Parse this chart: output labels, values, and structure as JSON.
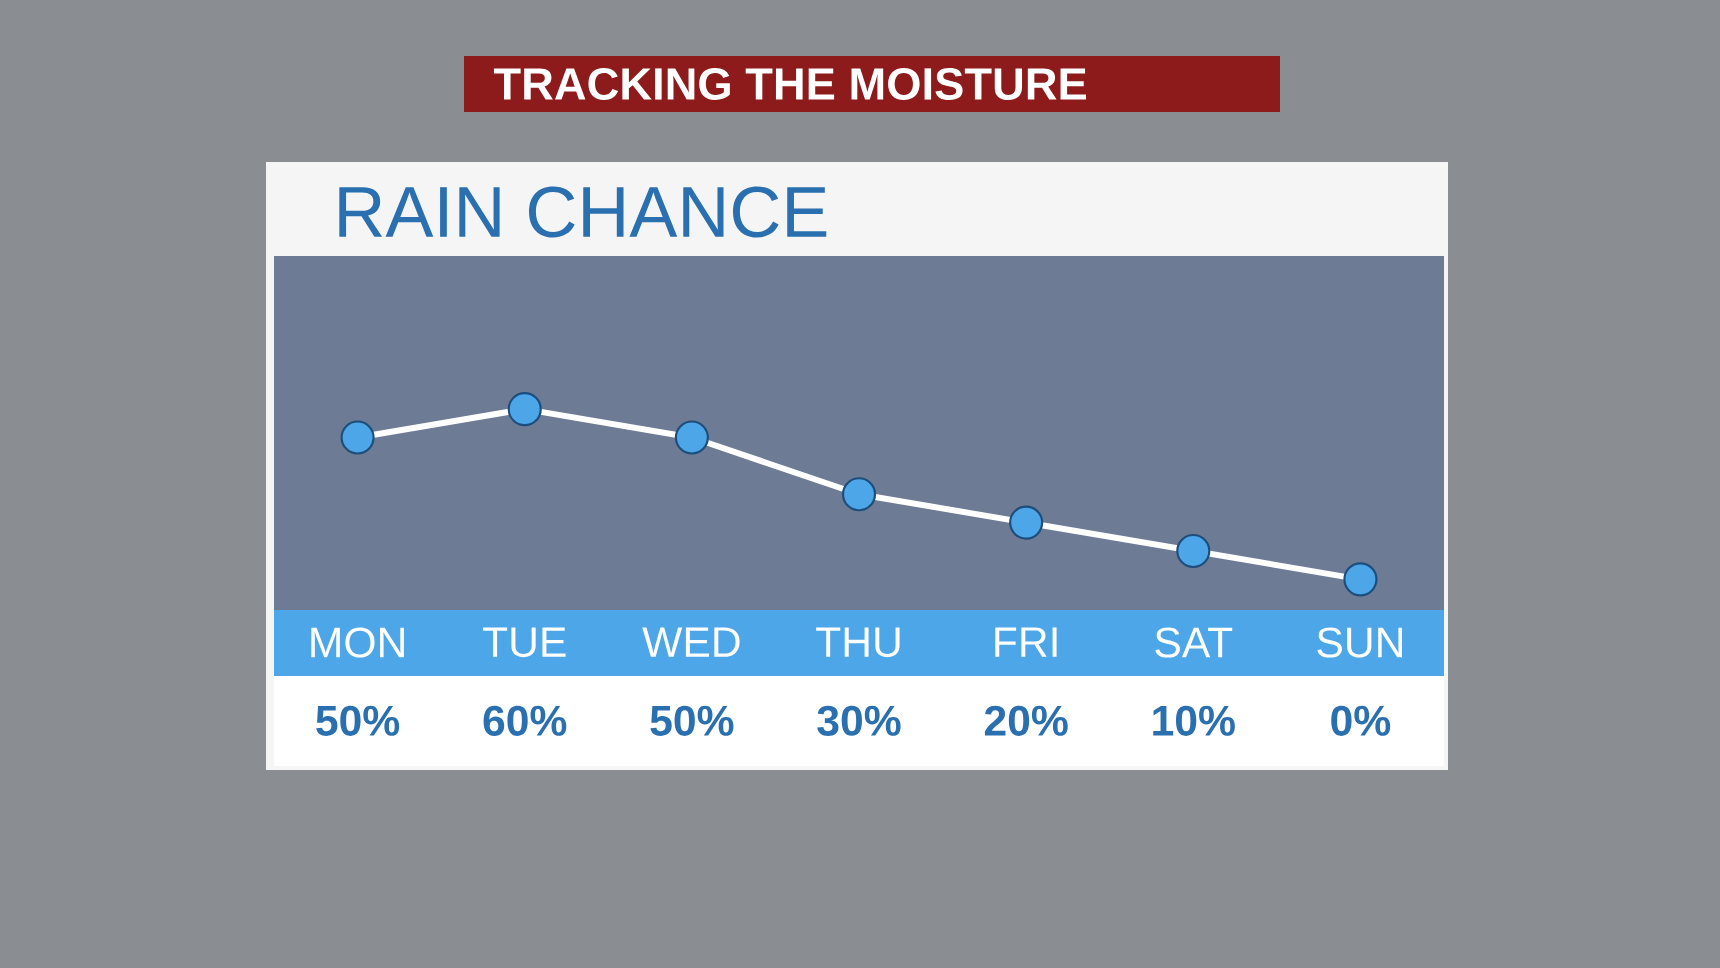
{
  "chart_data": {
    "type": "line",
    "title": "RAIN CHANCE",
    "subtitle": "TRACKING THE MOISTURE",
    "categories": [
      "MON",
      "TUE",
      "WED",
      "THU",
      "FRI",
      "SAT",
      "SUN"
    ],
    "values": [
      50,
      60,
      50,
      30,
      20,
      10,
      0
    ],
    "value_labels": [
      "50%",
      "60%",
      "50%",
      "30%",
      "20%",
      "10%",
      "0%"
    ],
    "color": "#ffffff",
    "marker": "circle",
    "line_style": "solid",
    "tick_labels": "x"
  }
}
